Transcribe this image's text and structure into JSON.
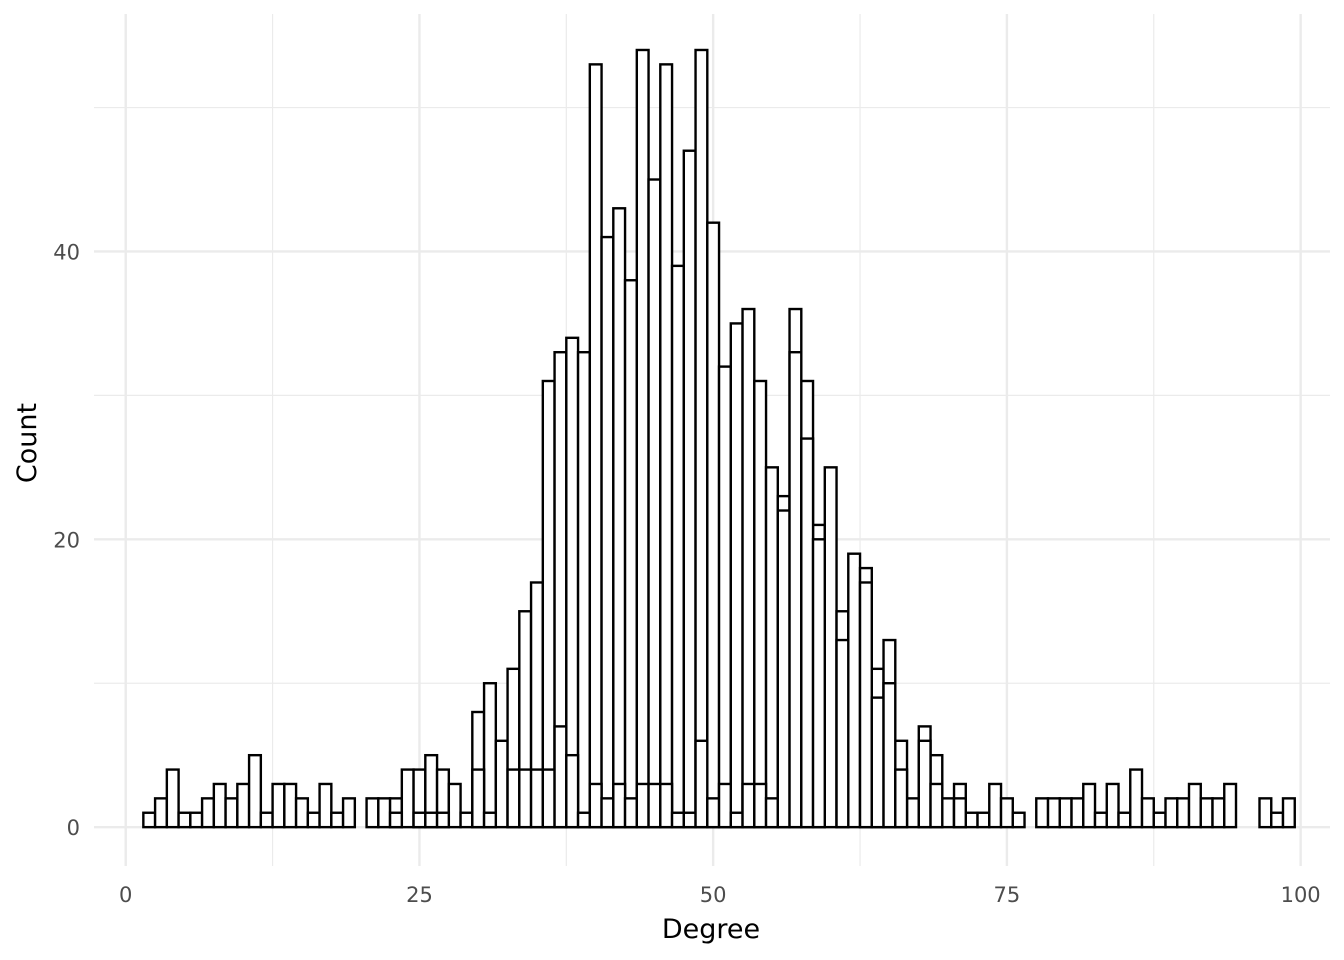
{
  "chart_data": {
    "type": "bar",
    "subtype": "histogram",
    "title": "",
    "xlabel": "Degree",
    "ylabel": "Count",
    "xlim": [
      -2.7,
      102.5
    ],
    "ylim": [
      -2.7,
      56.5
    ],
    "x_ticks": [
      0,
      25,
      50,
      75,
      100
    ],
    "x_tick_labels": [
      "0",
      "25",
      "50",
      "75",
      "100"
    ],
    "y_ticks": [
      0,
      20,
      40
    ],
    "y_tick_labels": [
      "0",
      "20",
      "40"
    ],
    "grid": true,
    "legend": "none",
    "bar_fill": "#ffffff",
    "bar_stroke": "#000000",
    "series": [
      {
        "bin_width": 1,
        "bins": [
          {
            "x": 2,
            "y": 1
          },
          {
            "x": 3,
            "y": 2
          },
          {
            "x": 4,
            "y": 4
          },
          {
            "x": 5,
            "y": 1
          },
          {
            "x": 6,
            "y": 1
          },
          {
            "x": 7,
            "y": 2
          },
          {
            "x": 8,
            "y": 3
          },
          {
            "x": 9,
            "y": 2
          },
          {
            "x": 10,
            "y": 3
          },
          {
            "x": 11,
            "y": 5
          },
          {
            "x": 12,
            "y": 1
          },
          {
            "x": 13,
            "y": 3
          },
          {
            "x": 14,
            "y": 3
          },
          {
            "x": 15,
            "y": 2
          },
          {
            "x": 16,
            "y": 1
          },
          {
            "x": 17,
            "y": 3
          },
          {
            "x": 18,
            "y": 1
          },
          {
            "x": 19,
            "y": 2
          },
          {
            "x": 21,
            "y": 2
          },
          {
            "x": 22,
            "y": 2
          },
          {
            "x": 23,
            "y": 2
          },
          {
            "x": 24,
            "y": 4
          },
          {
            "x": 25,
            "y": 4
          },
          {
            "x": 26,
            "y": 5
          },
          {
            "x": 27,
            "y": 4
          },
          {
            "x": 28,
            "y": 3
          },
          {
            "x": 29,
            "y": 1
          },
          {
            "x": 30,
            "y": 8
          },
          {
            "x": 31,
            "y": 10
          },
          {
            "x": 32,
            "y": 6
          },
          {
            "x": 33,
            "y": 11
          },
          {
            "x": 34,
            "y": 15
          },
          {
            "x": 35,
            "y": 17
          },
          {
            "x": 36,
            "y": 31
          },
          {
            "x": 37,
            "y": 33
          },
          {
            "x": 38,
            "y": 34
          },
          {
            "x": 39,
            "y": 33
          },
          {
            "x": 40,
            "y": 53
          },
          {
            "x": 41,
            "y": 41
          },
          {
            "x": 42,
            "y": 43
          },
          {
            "x": 43,
            "y": 38
          },
          {
            "x": 44,
            "y": 54
          },
          {
            "x": 45,
            "y": 45
          },
          {
            "x": 46,
            "y": 53
          },
          {
            "x": 47,
            "y": 39
          },
          {
            "x": 48,
            "y": 47
          },
          {
            "x": 49,
            "y": 54
          },
          {
            "x": 50,
            "y": 42
          },
          {
            "x": 51,
            "y": 32
          },
          {
            "x": 52,
            "y": 35
          },
          {
            "x": 53,
            "y": 36
          },
          {
            "x": 54,
            "y": 31
          },
          {
            "x": 55,
            "y": 25
          },
          {
            "x": 56,
            "y": 23
          },
          {
            "x": 57,
            "y": 36
          },
          {
            "x": 58,
            "y": 31
          },
          {
            "x": 59,
            "y": 21
          },
          {
            "x": 60,
            "y": 25
          },
          {
            "x": 61,
            "y": 15
          },
          {
            "x": 62,
            "y": 19
          },
          {
            "x": 63,
            "y": 18
          },
          {
            "x": 64,
            "y": 11
          },
          {
            "x": 65,
            "y": 13
          },
          {
            "x": 66,
            "y": 6
          },
          {
            "x": 67,
            "y": 2
          },
          {
            "x": 68,
            "y": 7
          },
          {
            "x": 69,
            "y": 5
          },
          {
            "x": 70,
            "y": 2
          },
          {
            "x": 71,
            "y": 3
          },
          {
            "x": 72,
            "y": 1
          },
          {
            "x": 73,
            "y": 1
          },
          {
            "x": 74,
            "y": 3
          },
          {
            "x": 75,
            "y": 2
          },
          {
            "x": 76,
            "y": 1
          },
          {
            "x": 78,
            "y": 2
          },
          {
            "x": 79,
            "y": 2
          },
          {
            "x": 80,
            "y": 2
          },
          {
            "x": 81,
            "y": 2
          },
          {
            "x": 82,
            "y": 3
          },
          {
            "x": 83,
            "y": 1
          },
          {
            "x": 84,
            "y": 3
          },
          {
            "x": 85,
            "y": 1
          },
          {
            "x": 86,
            "y": 4
          },
          {
            "x": 87,
            "y": 2
          },
          {
            "x": 88,
            "y": 1
          },
          {
            "x": 89,
            "y": 2
          },
          {
            "x": 90,
            "y": 2
          },
          {
            "x": 91,
            "y": 3
          },
          {
            "x": 92,
            "y": 2
          },
          {
            "x": 93,
            "y": 2
          },
          {
            "x": 94,
            "y": 3
          },
          {
            "x": 97,
            "y": 2
          },
          {
            "x": 98,
            "y": 1
          },
          {
            "x": 99,
            "y": 2
          }
        ]
      },
      {
        "bin_width": 1,
        "bins": [
          {
            "x": 23,
            "y": 1
          },
          {
            "x": 25,
            "y": 1
          },
          {
            "x": 26,
            "y": 1
          },
          {
            "x": 27,
            "y": 1
          },
          {
            "x": 30,
            "y": 4
          },
          {
            "x": 31,
            "y": 1
          },
          {
            "x": 33,
            "y": 4
          },
          {
            "x": 34,
            "y": 4
          },
          {
            "x": 35,
            "y": 4
          },
          {
            "x": 36,
            "y": 4
          },
          {
            "x": 37,
            "y": 7
          },
          {
            "x": 38,
            "y": 5
          },
          {
            "x": 39,
            "y": 1
          },
          {
            "x": 40,
            "y": 3
          },
          {
            "x": 41,
            "y": 2
          },
          {
            "x": 42,
            "y": 3
          },
          {
            "x": 43,
            "y": 2
          },
          {
            "x": 44,
            "y": 3
          },
          {
            "x": 45,
            "y": 3
          },
          {
            "x": 46,
            "y": 3
          },
          {
            "x": 47,
            "y": 1
          },
          {
            "x": 48,
            "y": 1
          },
          {
            "x": 49,
            "y": 6
          },
          {
            "x": 50,
            "y": 2
          },
          {
            "x": 51,
            "y": 3
          },
          {
            "x": 52,
            "y": 1
          },
          {
            "x": 53,
            "y": 3
          },
          {
            "x": 54,
            "y": 3
          },
          {
            "x": 55,
            "y": 2
          },
          {
            "x": 56,
            "y": 22
          },
          {
            "x": 57,
            "y": 33
          },
          {
            "x": 58,
            "y": 27
          },
          {
            "x": 59,
            "y": 20
          },
          {
            "x": 61,
            "y": 13
          },
          {
            "x": 63,
            "y": 17
          },
          {
            "x": 64,
            "y": 9
          },
          {
            "x": 65,
            "y": 10
          },
          {
            "x": 66,
            "y": 4
          },
          {
            "x": 68,
            "y": 6
          },
          {
            "x": 69,
            "y": 3
          },
          {
            "x": 71,
            "y": 2
          }
        ]
      }
    ]
  }
}
